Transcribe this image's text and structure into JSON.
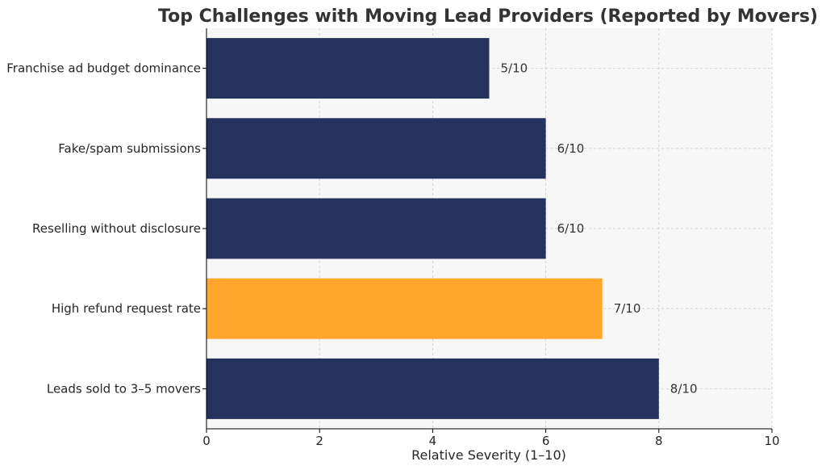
{
  "chart_data": {
    "type": "bar",
    "orientation": "horizontal",
    "title": "Top Challenges with Moving Lead Providers (Reported by Movers)",
    "xlabel": "Relative Severity (1–10)",
    "ylabel": "",
    "xlim": [
      0,
      10
    ],
    "xticks": [
      0,
      2,
      4,
      6,
      8,
      10
    ],
    "grid": true,
    "categories": [
      "Franchise ad budget dominance",
      "Fake/spam submissions",
      "Reselling without disclosure",
      "High refund request rate",
      "Leads sold to 3–5 movers"
    ],
    "values": [
      5,
      6,
      6,
      7,
      8
    ],
    "data_labels": [
      "5/10",
      "6/10",
      "6/10",
      "7/10",
      "8/10"
    ],
    "bar_colors": [
      "#25325d",
      "#25325d",
      "#25325d",
      "#ffa62b",
      "#25325d"
    ],
    "highlight": "High refund request rate"
  },
  "colors": {
    "bar_default": "#25325d",
    "bar_highlight": "#ffa62b",
    "plot_background": "#f7f7f7",
    "grid": "#cccccc",
    "axis": "#000000"
  }
}
